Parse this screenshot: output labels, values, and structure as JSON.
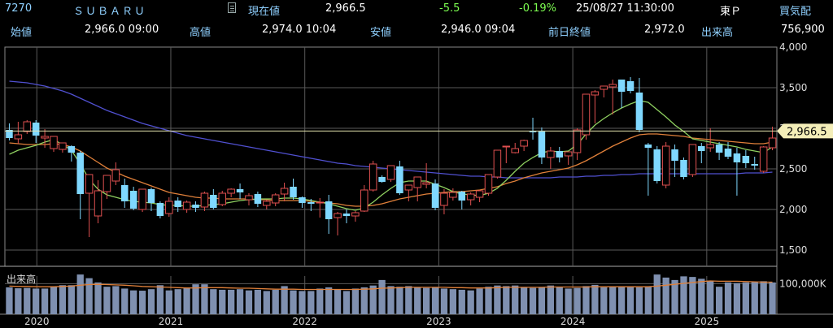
{
  "header": {
    "code": "7270",
    "name": "ＳＵＢＡＲＵ",
    "current_label": "現在値",
    "current_value": "2,966.5",
    "change": "-5.5",
    "change_pct": "-0.19%",
    "datetime": "25/08/27  11:30:00",
    "market": "東Ｐ",
    "quote_label": "買気配",
    "open_label": "始値",
    "open_value": "2,966.0 09:00",
    "high_label": "高値",
    "high_value": "2,974.0 10:04",
    "low_label": "安値",
    "low_value": "2,946.0 09:04",
    "prev_close_label": "前日終値",
    "prev_close_value": "2,972.0",
    "volume_label": "出来高",
    "volume_value": "756,900"
  },
  "colors": {
    "up": "#e05050",
    "down": "#7fd8ff",
    "ma_short": "#8fd060",
    "ma_mid": "#e0803a",
    "ma_long": "#5050d0",
    "vol_bar": "#7f90b0",
    "last_price_line": "#e8e8b0"
  },
  "chart_data": [
    {
      "type": "candlestick",
      "title": "",
      "x_tick_labels": [
        "2020",
        "2021",
        "2022",
        "2023",
        "2024",
        "2025"
      ],
      "y_tick_labels": [
        "4,000",
        "3,500",
        "3,000",
        "2,500",
        "2,000",
        "1,500"
      ],
      "y_ticks": [
        4000,
        3500,
        3000,
        2500,
        2000,
        1500
      ],
      "ylim": [
        1300,
        4000
      ],
      "last_price": 2966.5,
      "last_price_label": "2,966.5",
      "grid": true,
      "ohlc": [
        [
          2980,
          3060,
          2880,
          2850
        ],
        [
          2870,
          3080,
          2920,
          2810
        ],
        [
          2960,
          3100,
          3080,
          2930
        ],
        [
          3070,
          3100,
          2910,
          2820
        ],
        [
          2880,
          2990,
          2900,
          2760
        ],
        [
          2750,
          2820,
          2900,
          2710
        ],
        [
          2740,
          2810,
          2820,
          2700
        ],
        [
          2780,
          2790,
          2700,
          2590
        ],
        [
          2700,
          2720,
          2190,
          1880
        ],
        [
          2200,
          2380,
          2430,
          1660
        ],
        [
          1920,
          2360,
          2230,
          1830
        ],
        [
          2220,
          2380,
          2420,
          2130
        ],
        [
          2350,
          2580,
          2490,
          2300
        ],
        [
          2300,
          2380,
          2100,
          2020
        ],
        [
          2230,
          2280,
          2010,
          1990
        ],
        [
          2000,
          2230,
          2250,
          1970
        ],
        [
          2250,
          2270,
          2080,
          1980
        ],
        [
          2080,
          2100,
          1920,
          1890
        ],
        [
          1950,
          2150,
          2100,
          1910
        ],
        [
          2110,
          2150,
          2030,
          1970
        ],
        [
          2000,
          2110,
          2090,
          1960
        ],
        [
          2060,
          2100,
          2020,
          1970
        ],
        [
          2030,
          2220,
          2200,
          1980
        ],
        [
          2180,
          2250,
          2020,
          2000
        ],
        [
          2060,
          2230,
          2200,
          2040
        ],
        [
          2200,
          2260,
          2250,
          2150
        ],
        [
          2250,
          2320,
          2210,
          2130
        ],
        [
          2120,
          2200,
          2170,
          2050
        ],
        [
          2190,
          2220,
          2070,
          2030
        ],
        [
          2050,
          2120,
          2100,
          2000
        ],
        [
          2080,
          2200,
          2180,
          2040
        ],
        [
          2190,
          2330,
          2260,
          2100
        ],
        [
          2280,
          2380,
          2150,
          2120
        ],
        [
          2150,
          2160,
          2080,
          2020
        ],
        [
          2090,
          2130,
          2070,
          1980
        ],
        [
          2080,
          2140,
          2090,
          1900
        ],
        [
          2100,
          2180,
          1880,
          1700
        ],
        [
          1900,
          1970,
          1950,
          1680
        ],
        [
          1950,
          2000,
          1920,
          1830
        ],
        [
          1920,
          1980,
          1960,
          1850
        ],
        [
          1980,
          2300,
          2240,
          1970
        ],
        [
          2240,
          2600,
          2560,
          2220
        ],
        [
          2400,
          2420,
          2340,
          2330
        ],
        [
          2370,
          2540,
          2540,
          2340
        ],
        [
          2530,
          2600,
          2200,
          2180
        ],
        [
          2240,
          2280,
          2300,
          2100
        ],
        [
          2270,
          2340,
          2400,
          2100
        ],
        [
          2310,
          2570,
          2330,
          2260
        ],
        [
          2320,
          2370,
          2020,
          1990
        ],
        [
          2050,
          2250,
          2200,
          1940
        ],
        [
          2150,
          2260,
          2210,
          2110
        ],
        [
          2220,
          2230,
          2110,
          2000
        ],
        [
          2120,
          2210,
          2190,
          2050
        ],
        [
          2150,
          2240,
          2230,
          2090
        ],
        [
          2200,
          2260,
          2430,
          2170
        ],
        [
          2400,
          2630,
          2730,
          2380
        ],
        [
          2770,
          2770,
          2780,
          2570
        ],
        [
          2700,
          2820,
          2750,
          2690
        ],
        [
          2780,
          2860,
          2850,
          2720
        ],
        [
          2960,
          3130,
          2950,
          2860
        ],
        [
          2960,
          3010,
          2640,
          2560
        ],
        [
          2640,
          2770,
          2720,
          2500
        ],
        [
          2720,
          2770,
          2640,
          2580
        ],
        [
          2660,
          2670,
          2710,
          2550
        ],
        [
          2700,
          3000,
          2980,
          2610
        ],
        [
          2920,
          3230,
          3420,
          2860
        ],
        [
          3410,
          3470,
          3450,
          3060
        ],
        [
          3480,
          3500,
          3520,
          3380
        ],
        [
          3510,
          3600,
          3540,
          3170
        ],
        [
          3600,
          3550,
          3450,
          3250
        ],
        [
          3580,
          3630,
          3460,
          3430
        ],
        [
          3440,
          3620,
          2980,
          2950
        ],
        [
          2800,
          2820,
          2760,
          2170
        ],
        [
          2740,
          2780,
          2350,
          2320
        ],
        [
          2300,
          2830,
          2780,
          2260
        ],
        [
          2740,
          2800,
          2600,
          2400
        ],
        [
          2610,
          2640,
          2400,
          2370
        ],
        [
          2430,
          2800,
          2800,
          2400
        ],
        [
          2780,
          2820,
          2720,
          2570
        ],
        [
          2760,
          3000,
          2800,
          2710
        ],
        [
          2800,
          2830,
          2700,
          2610
        ],
        [
          2750,
          2830,
          2650,
          2620
        ],
        [
          2690,
          2760,
          2580,
          2170
        ],
        [
          2660,
          2730,
          2570,
          2510
        ],
        [
          2560,
          2650,
          2540,
          2490
        ],
        [
          2470,
          2780,
          2770,
          2450
        ],
        [
          2760,
          3020,
          2880,
          2730
        ]
      ],
      "ma_short": [
        2680,
        2730,
        2760,
        2790,
        2830,
        2860,
        2800,
        2730,
        2560,
        2370,
        2250,
        2180,
        2150,
        2120,
        2100,
        2090,
        2080,
        2060,
        2050,
        2050,
        2040,
        2040,
        2050,
        2060,
        2070,
        2090,
        2110,
        2120,
        2130,
        2130,
        2130,
        2140,
        2140,
        2130,
        2110,
        2090,
        2070,
        2040,
        2010,
        1990,
        2020,
        2090,
        2180,
        2260,
        2330,
        2350,
        2350,
        2350,
        2310,
        2270,
        2220,
        2190,
        2180,
        2170,
        2200,
        2260,
        2360,
        2470,
        2570,
        2640,
        2700,
        2720,
        2710,
        2720,
        2800,
        2930,
        3040,
        3120,
        3190,
        3250,
        3300,
        3340,
        3320,
        3230,
        3140,
        3040,
        2960,
        2870,
        2850,
        2830,
        2810,
        2790,
        2770,
        2740,
        2720,
        2700,
        2770
      ],
      "ma_mid": [
        2820,
        2810,
        2800,
        2800,
        2800,
        2810,
        2800,
        2770,
        2720,
        2650,
        2580,
        2510,
        2460,
        2410,
        2370,
        2330,
        2290,
        2250,
        2210,
        2190,
        2170,
        2150,
        2140,
        2140,
        2130,
        2130,
        2130,
        2130,
        2120,
        2120,
        2110,
        2110,
        2110,
        2110,
        2100,
        2090,
        2080,
        2070,
        2050,
        2040,
        2040,
        2050,
        2070,
        2100,
        2130,
        2150,
        2170,
        2190,
        2200,
        2210,
        2220,
        2220,
        2230,
        2240,
        2260,
        2280,
        2320,
        2350,
        2390,
        2420,
        2450,
        2470,
        2490,
        2510,
        2550,
        2600,
        2660,
        2720,
        2780,
        2830,
        2880,
        2920,
        2930,
        2930,
        2920,
        2910,
        2900,
        2880,
        2870,
        2860,
        2850,
        2840,
        2830,
        2820,
        2810,
        2810,
        2830
      ],
      "ma_long": [
        3580,
        3570,
        3560,
        3540,
        3520,
        3490,
        3460,
        3420,
        3370,
        3320,
        3270,
        3220,
        3180,
        3140,
        3100,
        3060,
        3030,
        3000,
        2970,
        2940,
        2910,
        2890,
        2870,
        2850,
        2830,
        2810,
        2790,
        2770,
        2750,
        2730,
        2710,
        2690,
        2670,
        2650,
        2630,
        2610,
        2590,
        2570,
        2560,
        2540,
        2530,
        2520,
        2510,
        2500,
        2490,
        2480,
        2470,
        2460,
        2450,
        2440,
        2430,
        2420,
        2410,
        2410,
        2400,
        2400,
        2390,
        2390,
        2390,
        2390,
        2390,
        2390,
        2400,
        2400,
        2400,
        2410,
        2410,
        2420,
        2420,
        2430,
        2430,
        2440,
        2440,
        2440,
        2440,
        2440,
        2440,
        2440,
        2440,
        2440,
        2440,
        2440,
        2440,
        2450,
        2450,
        2450,
        2460
      ]
    },
    {
      "type": "bar",
      "title": "出来高",
      "y_tick_label": "100,000K",
      "y_tick": 100000,
      "ylim": [
        0,
        125000
      ],
      "unit": "K",
      "values": [
        88000,
        85000,
        86000,
        84000,
        84000,
        90000,
        95000,
        95000,
        130000,
        118000,
        104000,
        90000,
        92000,
        84000,
        78000,
        77000,
        82000,
        95000,
        78000,
        82000,
        86000,
        98000,
        98000,
        82000,
        80000,
        80000,
        82000,
        78000,
        80000,
        76000,
        80000,
        92000,
        78000,
        76000,
        76000,
        84000,
        88000,
        82000,
        76000,
        84000,
        88000,
        94000,
        112000,
        92000,
        90000,
        92000,
        88000,
        86000,
        88000,
        84000,
        82000,
        80000,
        78000,
        84000,
        90000,
        94000,
        92000,
        94000,
        88000,
        86000,
        88000,
        94000,
        88000,
        84000,
        86000,
        92000,
        96000,
        88000,
        90000,
        90000,
        90000,
        88000,
        90000,
        130000,
        120000,
        112000,
        124000,
        122000,
        116000,
        110000,
        90000,
        104000,
        102000,
        104000,
        106000,
        108000,
        104000
      ],
      "ma": [
        92000,
        91000,
        91000,
        90000,
        90000,
        90000,
        91000,
        92000,
        95000,
        97000,
        98000,
        97000,
        96000,
        95000,
        93000,
        91000,
        90000,
        89000,
        88000,
        87000,
        86000,
        86000,
        87000,
        87000,
        87000,
        86000,
        85000,
        85000,
        84000,
        83000,
        82000,
        82000,
        82000,
        81000,
        81000,
        81000,
        81000,
        81000,
        81000,
        81000,
        82000,
        83000,
        85000,
        86000,
        87000,
        88000,
        88000,
        88000,
        88000,
        88000,
        87000,
        87000,
        86000,
        86000,
        86000,
        87000,
        88000,
        88000,
        88000,
        88000,
        88000,
        89000,
        89000,
        89000,
        89000,
        89000,
        90000,
        90000,
        90000,
        90000,
        90000,
        90000,
        90000,
        92000,
        95000,
        98000,
        101000,
        104000,
        107000,
        109000,
        108000,
        108000,
        108000,
        107000,
        106000,
        105000,
        105000
      ]
    }
  ]
}
